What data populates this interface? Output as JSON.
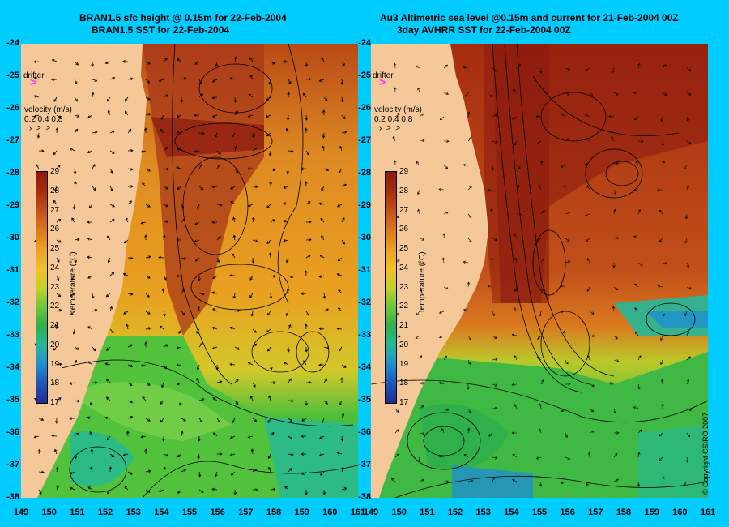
{
  "left_panel": {
    "title_line1": "BRAN1.5 sfc height @ 0.15m for 22-Feb-2004",
    "title_line2": "BRAN1.5 SST for 22-Feb-2004",
    "drifter_label": "drifter",
    "velocity_title": "velocity (m/s)",
    "velocity_scale": "0.2 0.4 0.8",
    "colorbar_title": "temperature (°C)"
  },
  "right_panel": {
    "title_line1": "Au3 Altimetric sea level  @0.15m and current for 21-Feb-2004 00Z",
    "title_line2": "3day AVHRR SST for 22-Feb-2004 00Z",
    "drifter_label": "drifter",
    "velocity_title": "velocity (m/s)",
    "velocity_scale": "0.2 0.4 0.8",
    "colorbar_title": "temperature (°C)"
  },
  "latitude_ticks": [
    "-24",
    "-25",
    "-26",
    "-27",
    "-28",
    "-29",
    "-30",
    "-31",
    "-32",
    "-33",
    "-34",
    "-35",
    "-36",
    "-37",
    "-38"
  ],
  "longitude_ticks": [
    "149",
    "150",
    "151",
    "152",
    "153",
    "154",
    "155",
    "156",
    "157",
    "158",
    "159",
    "160",
    "161"
  ],
  "colorbar_ticks": [
    "29",
    "28",
    "27",
    "26",
    "25",
    "24",
    "23",
    "22",
    "21",
    "20",
    "19",
    "18",
    "17"
  ],
  "copyright": "© Copyright CSIRO 2007",
  "colors": {
    "background": "#00ccff",
    "land": "#f5c89a",
    "drifter_marker": "#ff33ff",
    "sst_colors": [
      "#8b1a0e",
      "#a62c10",
      "#c0501a",
      "#d9781e",
      "#e9a020",
      "#f2c02a",
      "#c6d02a",
      "#6dc83a",
      "#2fb04a",
      "#23b89a",
      "#1f8fd0",
      "#1f56b8",
      "#202a90"
    ]
  }
}
